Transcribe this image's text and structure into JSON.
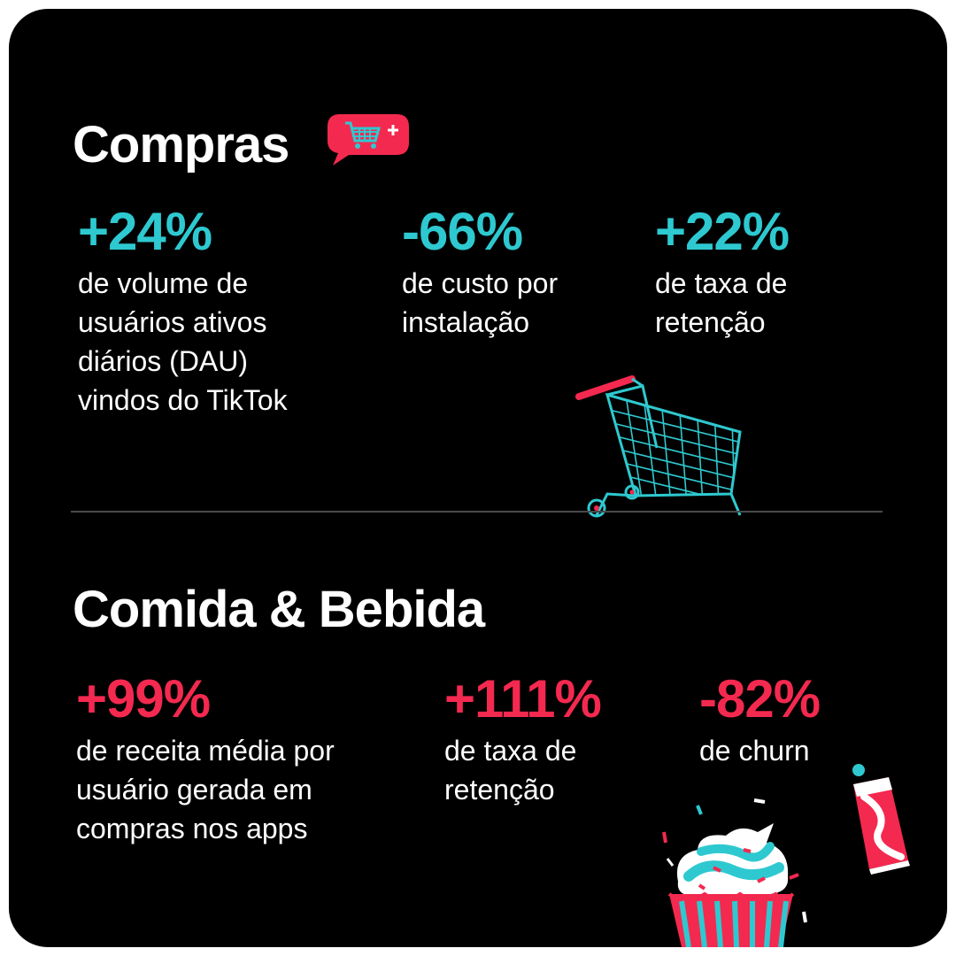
{
  "sections": {
    "shopping": {
      "title": "Compras",
      "stats": [
        {
          "value": "+24%",
          "label": "de volume de\nusuários ativos\ndiários (DAU)\nvindos do TikTok"
        },
        {
          "value": "-66%",
          "label": "de custo por\ninstalação"
        },
        {
          "value": "+22%",
          "label": "de taxa de\nretenção"
        }
      ],
      "icon": "shopping-cart-speech-bubble-icon",
      "illustration": "shopping-cart-icon"
    },
    "food": {
      "title": "Comida & Bebida",
      "stats": [
        {
          "value": "+99%",
          "label": "de receita média por\nusuário gerada em\ncompras nos apps"
        },
        {
          "value": "+111%",
          "label": "de taxa de\nretenção"
        },
        {
          "value": "-82%",
          "label": "de churn"
        }
      ],
      "illustration": [
        "cupcake-icon",
        "soda-can-icon"
      ]
    }
  },
  "colors": {
    "background": "#000000",
    "cyan": "#2ec9d0",
    "red": "#f4294f",
    "text": "#ffffff"
  }
}
